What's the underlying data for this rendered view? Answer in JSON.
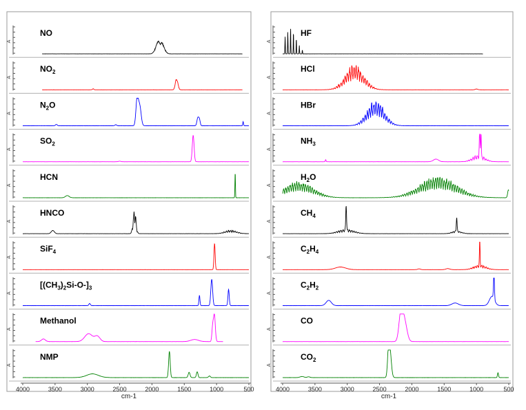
{
  "chart_data": [
    {
      "type": "line",
      "panel": "left",
      "xlabel": "cm-1",
      "xlim": [
        4000,
        500
      ],
      "x_ticks": [
        "4000",
        "3500",
        "3000",
        "2500",
        "2000",
        "1500",
        "1000",
        "500"
      ],
      "x_reversed": true,
      "y_tick_marker": "A",
      "grid": false,
      "stack": [
        {
          "name": "NO",
          "base": "NO",
          "sub": "",
          "tail": "",
          "color": "#000000",
          "peaks": [
            {
              "x": 1876,
              "h": 1.0,
              "w": 45,
              "comb": true
            }
          ],
          "xrange": [
            3700,
            600
          ]
        },
        {
          "name": "NO2",
          "base": "NO",
          "sub": "2",
          "tail": "",
          "color": "#ff0000",
          "peaks": [
            {
              "x": 1617,
              "h": 1.0,
              "w": 18,
              "comb": true
            },
            {
              "x": 2910,
              "h": 0.04,
              "w": 10
            }
          ],
          "xrange": [
            3700,
            600
          ]
        },
        {
          "name": "N2O",
          "base": "N",
          "sub": "2",
          "tail": "O",
          "color": "#0000ff",
          "peaks": [
            {
              "x": 2230,
              "h": 1.0,
              "w": 18
            },
            {
              "x": 2190,
              "h": 0.75,
              "w": 22
            },
            {
              "x": 1290,
              "h": 0.3,
              "w": 14
            },
            {
              "x": 1265,
              "h": 0.22,
              "w": 12
            },
            {
              "x": 3480,
              "h": 0.05,
              "w": 14
            },
            {
              "x": 2560,
              "h": 0.04,
              "w": 14
            },
            {
              "x": 589,
              "h": 0.16,
              "w": 6
            }
          ],
          "xrange": [
            4000,
            500
          ]
        },
        {
          "name": "SO2",
          "base": "SO",
          "sub": "2",
          "tail": "",
          "color": "#ff00ff",
          "peaks": [
            {
              "x": 1362,
              "h": 1.0,
              "w": 14
            },
            {
              "x": 2500,
              "h": 0.02,
              "w": 20
            }
          ],
          "xrange": [
            4000,
            500
          ]
        },
        {
          "name": "HCN",
          "base": "HCN",
          "sub": "",
          "tail": "",
          "color": "#008000",
          "peaks": [
            {
              "x": 712,
              "h": 1.0,
              "w": 4
            },
            {
              "x": 3311,
              "h": 0.08,
              "w": 28
            }
          ],
          "xrange": [
            4000,
            500
          ]
        },
        {
          "name": "HNCO",
          "base": "HNCO",
          "sub": "",
          "tail": "",
          "color": "#000000",
          "peaks": [
            {
              "x": 2270,
              "h": 1.0,
              "w": 22,
              "comb": true
            },
            {
              "x": 3535,
              "h": 0.12,
              "w": 24
            },
            {
              "x": 780,
              "h": 0.14,
              "w": 90,
              "comb": true
            }
          ],
          "xrange": [
            4000,
            500
          ]
        },
        {
          "name": "SiF4",
          "base": "SiF",
          "sub": "4",
          "tail": "",
          "color": "#ff0000",
          "peaks": [
            {
              "x": 1031,
              "h": 1.0,
              "w": 9
            }
          ],
          "xrange": [
            4000,
            500
          ]
        },
        {
          "name": "[(CH3)2Si-O-]3",
          "base": "[(CH",
          "sub": "3",
          "tail": ")",
          "base2": "",
          "sub2": "2",
          "tail2": "Si-O-]",
          "sub3": "3",
          "color": "#0000ff",
          "peaks": [
            {
              "x": 1075,
              "h": 1.0,
              "w": 14
            },
            {
              "x": 1265,
              "h": 0.38,
              "w": 8
            },
            {
              "x": 814,
              "h": 0.62,
              "w": 10
            },
            {
              "x": 2965,
              "h": 0.08,
              "w": 12
            }
          ],
          "xrange": [
            4000,
            500
          ]
        },
        {
          "name": "Methanol",
          "base": "Methanol",
          "sub": "",
          "tail": "",
          "color": "#ff00ff",
          "peaks": [
            {
              "x": 1033,
              "h": 1.0,
              "w": 14
            },
            {
              "x": 1060,
              "h": 0.55,
              "w": 12
            },
            {
              "x": 2980,
              "h": 0.3,
              "w": 60
            },
            {
              "x": 2845,
              "h": 0.2,
              "w": 40
            },
            {
              "x": 3680,
              "h": 0.1,
              "w": 30
            },
            {
              "x": 1340,
              "h": 0.08,
              "w": 60
            }
          ],
          "xrange": [
            3800,
            900
          ]
        },
        {
          "name": "NMP",
          "base": "NMP",
          "sub": "",
          "tail": "",
          "color": "#008000",
          "peaks": [
            {
              "x": 1730,
              "h": 1.0,
              "w": 12
            },
            {
              "x": 2920,
              "h": 0.14,
              "w": 90
            },
            {
              "x": 1425,
              "h": 0.2,
              "w": 14
            },
            {
              "x": 1300,
              "h": 0.22,
              "w": 12
            },
            {
              "x": 1110,
              "h": 0.06,
              "w": 14
            }
          ],
          "xrange": [
            4000,
            500
          ]
        }
      ]
    },
    {
      "type": "line",
      "panel": "right",
      "xlabel": "cm-1",
      "xlim": [
        4000,
        500
      ],
      "x_ticks": [
        "4000",
        "3500",
        "3000",
        "2500",
        "2000",
        "1500",
        "1000",
        "500"
      ],
      "x_reversed": true,
      "y_tick_marker": "A",
      "grid": false,
      "stack": [
        {
          "name": "HF",
          "base": "HF",
          "sub": "",
          "tail": "",
          "color": "#000000",
          "peaks": [
            {
              "x": 3962,
              "h": 0.65,
              "w": 3
            },
            {
              "x": 3920,
              "h": 0.85,
              "w": 3
            },
            {
              "x": 3877,
              "h": 1.0,
              "w": 3
            },
            {
              "x": 3833,
              "h": 0.85,
              "w": 3
            },
            {
              "x": 3788,
              "h": 0.6,
              "w": 3
            },
            {
              "x": 3742,
              "h": 0.32,
              "w": 3
            },
            {
              "x": 3695,
              "h": 0.15,
              "w": 3
            }
          ],
          "xrange": [
            4000,
            900
          ]
        },
        {
          "name": "HCl",
          "base": "HCl",
          "sub": "",
          "tail": "",
          "color": "#ff0000",
          "peaks": [
            {
              "x": 2886,
              "h": 1.0,
              "w": 140,
              "comb": true
            },
            {
              "x": 1000,
              "h": 0.03,
              "w": 20
            }
          ],
          "xrange": [
            4000,
            500
          ]
        },
        {
          "name": "HBr",
          "base": "HBr",
          "sub": "",
          "tail": "",
          "color": "#0000ff",
          "peaks": [
            {
              "x": 2559,
              "h": 1.0,
              "w": 130,
              "comb": true
            }
          ],
          "xrange": [
            4000,
            500
          ]
        },
        {
          "name": "NH3",
          "base": "NH",
          "sub": "3",
          "tail": "",
          "color": "#ff00ff",
          "peaks": [
            {
              "x": 950,
              "h": 1.0,
              "w": 6
            },
            {
              "x": 930,
              "h": 0.95,
              "w": 5
            },
            {
              "x": 965,
              "h": 0.28,
              "w": 90,
              "comb": true
            },
            {
              "x": 1627,
              "h": 0.1,
              "w": 40
            },
            {
              "x": 3334,
              "h": 0.08,
              "w": 6
            }
          ],
          "xrange": [
            4000,
            500
          ]
        },
        {
          "name": "H2O",
          "base": "H",
          "sub": "2",
          "tail": "O",
          "color": "#008000",
          "peaks": [
            {
              "x": 3750,
              "h": 0.65,
              "w": 220,
              "comb": true
            },
            {
              "x": 1595,
              "h": 0.85,
              "w": 280,
              "comb": true
            },
            {
              "x": 505,
              "h": 0.3,
              "w": 12
            }
          ],
          "xrange": [
            4000,
            500
          ]
        },
        {
          "name": "CH4",
          "base": "CH",
          "sub": "4",
          "tail": "",
          "color": "#000000",
          "peaks": [
            {
              "x": 3017,
              "h": 1.0,
              "w": 6
            },
            {
              "x": 3017,
              "h": 0.18,
              "w": 120,
              "comb": true
            },
            {
              "x": 1306,
              "h": 0.55,
              "w": 6
            },
            {
              "x": 1306,
              "h": 0.12,
              "w": 70,
              "comb": true
            }
          ],
          "xrange": [
            4000,
            500
          ]
        },
        {
          "name": "C2H4",
          "base": "C",
          "sub": "2",
          "tail": "H",
          "sub2": "4",
          "color": "#ff0000",
          "peaks": [
            {
              "x": 949,
              "h": 1.0,
              "w": 5
            },
            {
              "x": 949,
              "h": 0.2,
              "w": 90,
              "comb": true
            },
            {
              "x": 3105,
              "h": 0.1,
              "w": 80
            },
            {
              "x": 1443,
              "h": 0.04,
              "w": 30
            },
            {
              "x": 1889,
              "h": 0.03,
              "w": 20
            }
          ],
          "xrange": [
            4000,
            500
          ]
        },
        {
          "name": "C2H2",
          "base": "C",
          "sub": "2",
          "tail": "H",
          "sub2": "2",
          "color": "#0000ff",
          "peaks": [
            {
              "x": 729,
              "h": 1.0,
              "w": 7
            },
            {
              "x": 760,
              "h": 0.35,
              "w": 40
            },
            {
              "x": 3287,
              "h": 0.2,
              "w": 40
            },
            {
              "x": 1330,
              "h": 0.1,
              "w": 50
            }
          ],
          "xrange": [
            4000,
            500
          ]
        },
        {
          "name": "CO",
          "base": "CO",
          "sub": "",
          "tail": "",
          "color": "#ff00ff",
          "peaks": [
            {
              "x": 2170,
              "h": 1.0,
              "w": 30
            },
            {
              "x": 2115,
              "h": 0.78,
              "w": 38
            }
          ],
          "xrange": [
            4000,
            500
          ]
        },
        {
          "name": "CO2",
          "base": "CO",
          "sub": "2",
          "tail": "",
          "color": "#008000",
          "peaks": [
            {
              "x": 2360,
              "h": 1.0,
              "w": 16
            },
            {
              "x": 2335,
              "h": 0.85,
              "w": 20
            },
            {
              "x": 667,
              "h": 0.18,
              "w": 8
            },
            {
              "x": 3700,
              "h": 0.04,
              "w": 30
            },
            {
              "x": 3600,
              "h": 0.03,
              "w": 20
            }
          ],
          "xrange": [
            4000,
            500
          ]
        }
      ]
    }
  ]
}
